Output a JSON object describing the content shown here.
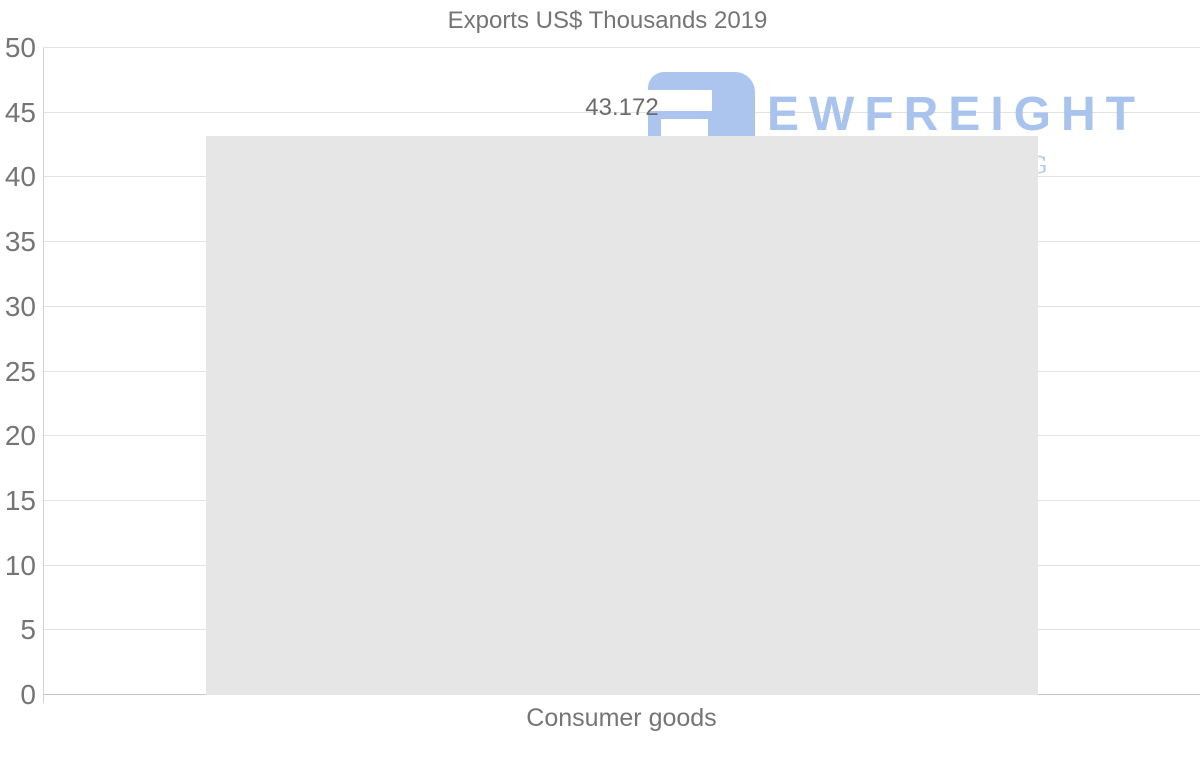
{
  "chart_data": {
    "type": "bar",
    "title": "Exports US$ Thousands 2019",
    "categories": [
      "Consumer goods"
    ],
    "values": [
      43.172
    ],
    "value_labels": [
      "43.172"
    ],
    "ylim": [
      0,
      50
    ],
    "yticks": [
      0,
      5,
      10,
      15,
      20,
      25,
      30,
      35,
      40,
      45,
      50
    ],
    "xlabel": "",
    "ylabel": "",
    "grid": "horizontal",
    "legend": "none",
    "colors": {
      "bar": "#e6e6e6",
      "text": "#757575",
      "value_text": "#6b6b6b",
      "gridline": "#e2e2e2",
      "axis_line": "#c6c6c6",
      "background": "#ffffff"
    }
  },
  "watermark": {
    "text": "EWFREIGHT",
    "tagline_visible": "G",
    "color": "#a8c3ee"
  }
}
